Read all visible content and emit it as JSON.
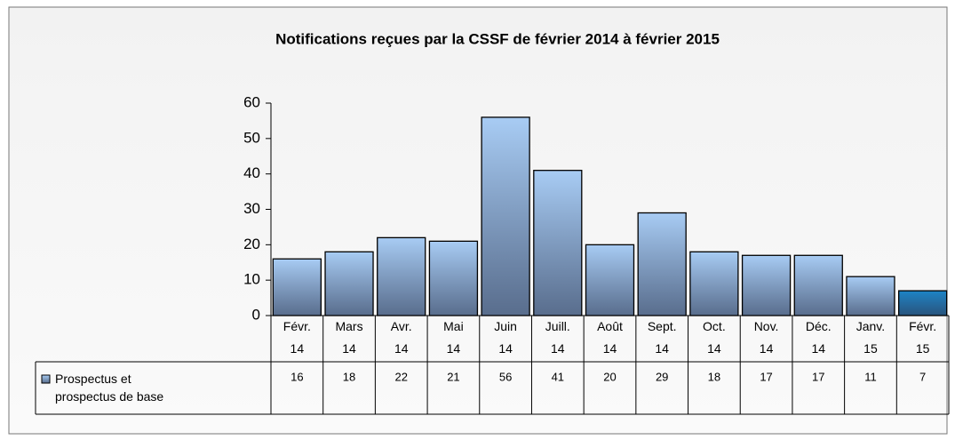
{
  "chart_data": {
    "type": "bar",
    "title": "Notifications reçues par la CSSF de février 2014 à février 2015",
    "categories": [
      "Févr. 14",
      "Mars 14",
      "Avr. 14",
      "Mai 14",
      "Juin 14",
      "Juill. 14",
      "Août 14",
      "Sept. 14",
      "Oct. 14",
      "Nov. 14",
      "Déc. 14",
      "Janv. 15",
      "Févr. 15"
    ],
    "series": [
      {
        "name": "Prospectus et prospectus de base",
        "color": "#a8ccf4",
        "values": [
          16,
          18,
          22,
          21,
          56,
          41,
          20,
          29,
          18,
          17,
          17,
          11,
          7
        ],
        "colors": [
          "#a8ccf4",
          "#a8ccf4",
          "#a8ccf4",
          "#a8ccf4",
          "#a8ccf4",
          "#a8ccf4",
          "#a8ccf4",
          "#a8ccf4",
          "#a8ccf4",
          "#a8ccf4",
          "#a8ccf4",
          "#a8ccf4",
          "#1a84c6"
        ]
      }
    ],
    "ylim": [
      0,
      60
    ],
    "yticks": [
      0,
      10,
      20,
      30,
      40,
      50,
      60
    ],
    "grid": false,
    "data_table": true
  }
}
